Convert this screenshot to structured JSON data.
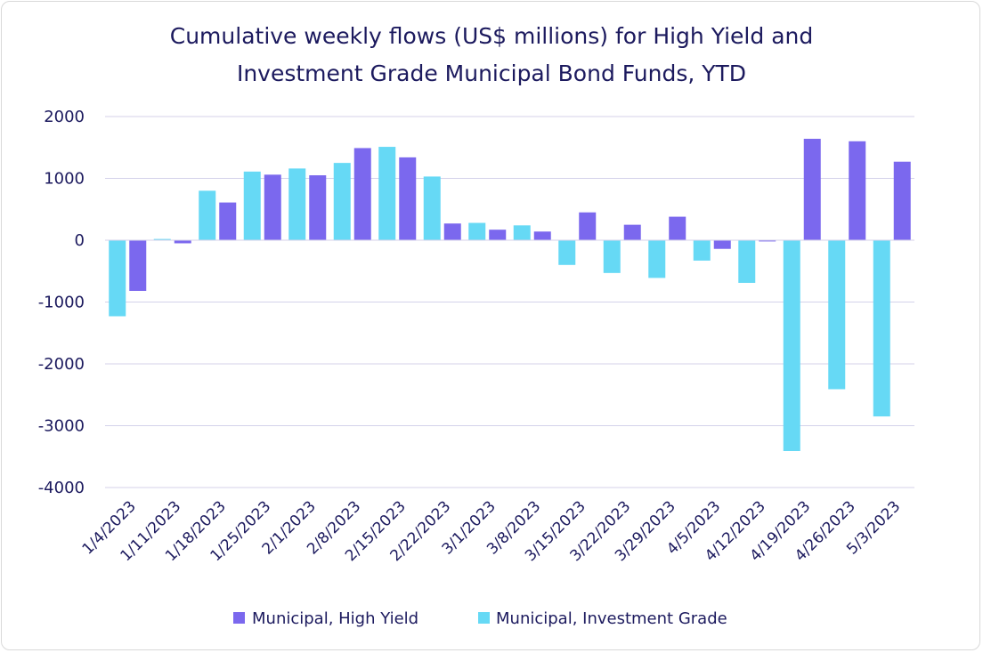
{
  "title_line1": "Cumulative weekly flows (US$ millions) for High Yield and",
  "title_line2": "Investment Grade Municipal Bond Funds, YTD",
  "chart_data": {
    "type": "bar",
    "title": "Cumulative weekly flows (US$ millions) for High Yield and Investment Grade Municipal Bond Funds, YTD",
    "xlabel": "",
    "ylabel": "",
    "ylim": [
      -4000,
      2000
    ],
    "yticks": [
      2000,
      1000,
      0,
      -1000,
      -2000,
      -3000,
      -4000
    ],
    "grid": true,
    "legend_position": "bottom",
    "categories": [
      "1/4/2023",
      "1/11/2023",
      "1/18/2023",
      "1/25/2023",
      "2/1/2023",
      "2/8/2023",
      "2/15/2023",
      "2/22/2023",
      "3/1/2023",
      "3/8/2023",
      "3/15/2023",
      "3/22/2023",
      "3/29/2023",
      "4/5/2023",
      "4/12/2023",
      "4/19/2023",
      "4/26/2023",
      "5/3/2023"
    ],
    "series": [
      {
        "name": "Municipal, Investment Grade",
        "color": "#66d9f5",
        "values": [
          -1230,
          20,
          800,
          1110,
          1160,
          1250,
          1510,
          1030,
          280,
          240,
          -400,
          -530,
          -610,
          -330,
          -690,
          -3410,
          -2410,
          -2850
        ]
      },
      {
        "name": "Municipal, High Yield",
        "color": "#7b68ee",
        "values": [
          -820,
          -50,
          610,
          1060,
          1050,
          1490,
          1340,
          270,
          170,
          140,
          450,
          250,
          380,
          -140,
          -20,
          1640,
          1600,
          1270
        ]
      }
    ]
  }
}
